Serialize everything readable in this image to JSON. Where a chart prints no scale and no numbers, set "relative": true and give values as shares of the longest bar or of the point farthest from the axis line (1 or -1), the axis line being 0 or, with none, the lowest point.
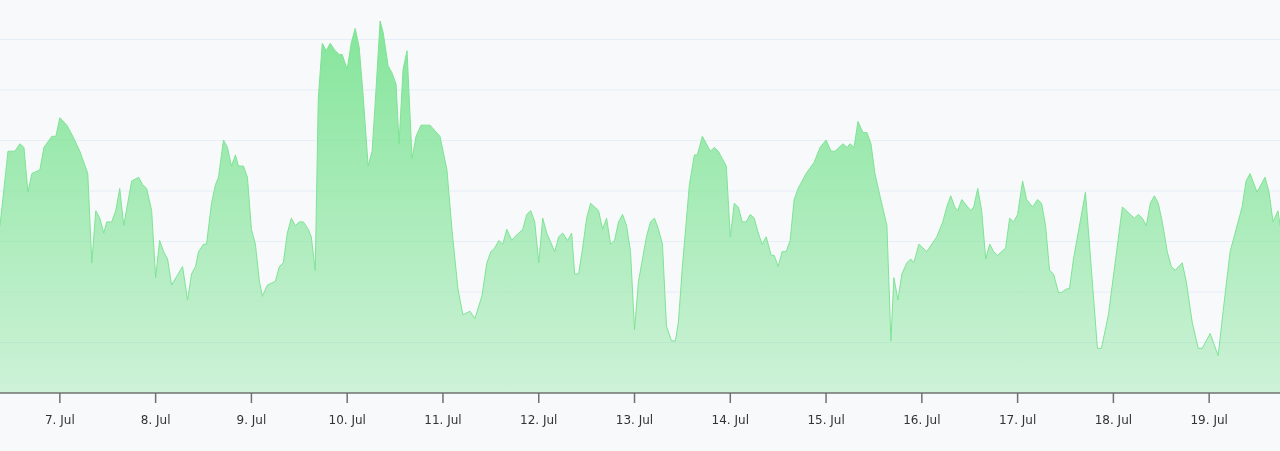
{
  "chart_data": {
    "type": "area",
    "relative": true,
    "color": "#7ee495",
    "grid": true,
    "xlim": [
      "--07-06T09:00",
      "--07-19T17:45"
    ],
    "xticks": [
      {
        "value": "--07-07",
        "label": "7. Jul"
      },
      {
        "value": "--07-08",
        "label": "8. Jul"
      },
      {
        "value": "--07-09",
        "label": "9. Jul"
      },
      {
        "value": "--07-10",
        "label": "10. Jul"
      },
      {
        "value": "--07-11",
        "label": "11. Jul"
      },
      {
        "value": "--07-12",
        "label": "12. Jul"
      },
      {
        "value": "--07-13",
        "label": "13. Jul"
      },
      {
        "value": "--07-14",
        "label": "14. Jul"
      },
      {
        "value": "--07-15",
        "label": "15. Jul"
      },
      {
        "value": "--07-16",
        "label": "16. Jul"
      },
      {
        "value": "--07-17",
        "label": "17. Jul"
      },
      {
        "value": "--07-18",
        "label": "18. Jul"
      },
      {
        "value": "--07-19",
        "label": "19. Jul"
      }
    ],
    "x": [
      "--07-06T09:00",
      "--07-06T11:00",
      "--07-06T12:45",
      "--07-06T14:00",
      "--07-06T15:00",
      "--07-06T16:00",
      "--07-06T17:00",
      "--07-06T19:00",
      "--07-06T20:00",
      "--07-06T22:00",
      "--07-06T23:00",
      "--07-07T00:00",
      "--07-07T01:45",
      "--07-07T03:15",
      "--07-07T05:00",
      "--07-07T07:00",
      "--07-07T08:00",
      "--07-07T09:00",
      "--07-07T10:00",
      "--07-07T11:00",
      "--07-07T11:45",
      "--07-07T13:00",
      "--07-07T14:00",
      "--07-07T15:00",
      "--07-07T16:00",
      "--07-07T17:00",
      "--07-07T18:00",
      "--07-07T19:45",
      "--07-07T20:45",
      "--07-07T21:45",
      "--07-07T23:00",
      "--07-08T00:00",
      "--07-08T01:00",
      "--07-08T02:00",
      "--07-08T03:00",
      "--07-08T04:00",
      "--07-08T06:45",
      "--07-08T08:00",
      "--07-08T09:00",
      "--07-08T10:00",
      "--07-08T10:45",
      "--07-08T12:00",
      "--07-08T12:45",
      "--07-08T14:00",
      "--07-08T15:00",
      "--07-08T15:45",
      "--07-08T17:00",
      "--07-08T18:00",
      "--07-08T19:00",
      "--07-08T20:00",
      "--07-08T20:45",
      "--07-08T22:00",
      "--07-08T23:00",
      "--07-09T00:00",
      "--07-09T01:00",
      "--07-09T02:00",
      "--07-09T02:45",
      "--07-09T04:00",
      "--07-09T06:00",
      "--07-09T07:00",
      "--07-09T08:00",
      "--07-09T09:00",
      "--07-09T10:00",
      "--07-09T11:00",
      "--07-09T12:00",
      "--07-09T13:00",
      "--07-09T14:15",
      "--07-09T15:00",
      "--07-09T16:00",
      "--07-09T16:45",
      "--07-09T17:45",
      "--07-09T18:45",
      "--07-09T19:45",
      "--07-09T21:00",
      "--07-09T22:00",
      "--07-09T22:45",
      "--07-10T00:00",
      "--07-10T01:00",
      "--07-10T02:00",
      "--07-10T03:00",
      "--07-10T04:00",
      "--07-10T05:15",
      "--07-10T06:15",
      "--07-10T07:15",
      "--07-10T08:15",
      "--07-10T09:00",
      "--07-10T10:15",
      "--07-10T11:15",
      "--07-10T12:15",
      "--07-10T13:00",
      "--07-10T14:00",
      "--07-10T15:00",
      "--07-10T16:15",
      "--07-10T17:15",
      "--07-10T18:30",
      "--07-10T19:30",
      "--07-10T20:45",
      "--07-10T23:15",
      "--07-11T01:00",
      "--07-11T02:15",
      "--07-11T03:45",
      "--07-11T05:00",
      "--07-11T06:45",
      "--07-11T08:00",
      "--07-11T09:45",
      "--07-11T11:00",
      "--07-11T12:00",
      "--07-11T13:00",
      "--07-11T14:00",
      "--07-11T15:00",
      "--07-11T16:00",
      "--07-11T17:15",
      "--07-11T18:00",
      "--07-11T19:00",
      "--07-11T20:00",
      "--07-11T21:00",
      "--07-11T22:00",
      "--07-11T23:00",
      "--07-12T00:00",
      "--07-12T01:00",
      "--07-12T02:00",
      "--07-12T04:00",
      "--07-12T05:00",
      "--07-12T06:00",
      "--07-12T07:15",
      "--07-12T08:15",
      "--07-12T09:00",
      "--07-12T10:00",
      "--07-12T11:00",
      "--07-12T12:00",
      "--07-12T13:00",
      "--07-12T15:00",
      "--07-12T16:00",
      "--07-12T17:00",
      "--07-12T18:00",
      "--07-12T19:00",
      "--07-12T20:00",
      "--07-12T21:00",
      "--07-12T22:00",
      "--07-12T23:00",
      "--07-13T00:00",
      "--07-13T01:00",
      "--07-13T02:00",
      "--07-13T03:00",
      "--07-13T04:00",
      "--07-13T05:00",
      "--07-13T06:00",
      "--07-13T07:00",
      "--07-13T08:00",
      "--07-13T09:15",
      "--07-13T10:15",
      "--07-13T11:00",
      "--07-13T12:00",
      "--07-13T13:45",
      "--07-13T15:00",
      "--07-13T15:45",
      "--07-13T17:00",
      "--07-13T18:00",
      "--07-13T19:00",
      "--07-13T20:00",
      "--07-13T21:00",
      "--07-13T22:00",
      "--07-13T23:00",
      "--07-14T00:00",
      "--07-14T01:00",
      "--07-14T02:00",
      "--07-14T03:00",
      "--07-14T04:00",
      "--07-14T05:00",
      "--07-14T06:00",
      "--07-14T07:00",
      "--07-14T08:00",
      "--07-14T09:00",
      "--07-14T10:15",
      "--07-14T11:00",
      "--07-14T12:00",
      "--07-14T13:00",
      "--07-14T14:00",
      "--07-14T15:00",
      "--07-14T16:00",
      "--07-14T17:00",
      "--07-14T19:00",
      "--07-14T21:00",
      "--07-14T22:30",
      "--07-15T00:00",
      "--07-15T01:15",
      "--07-15T02:15",
      "--07-15T04:15",
      "--07-15T05:15",
      "--07-15T06:00",
      "--07-15T07:00",
      "--07-15T08:00",
      "--07-15T09:15",
      "--07-15T10:15",
      "--07-15T11:15",
      "--07-15T12:15",
      "--07-15T13:30",
      "--07-15T15:15",
      "--07-15T16:15",
      "--07-15T17:00",
      "--07-15T18:00",
      "--07-15T19:00",
      "--07-15T20:15",
      "--07-15T21:15",
      "--07-15T22:00",
      "--07-15T23:15",
      "--07-16T00:15",
      "--07-16T01:15",
      "--07-16T03:45",
      "--07-16T05:15",
      "--07-16T06:15",
      "--07-16T07:15",
      "--07-16T08:15",
      "--07-16T09:00",
      "--07-16T10:00",
      "--07-16T12:15",
      "--07-16T13:00",
      "--07-16T14:00",
      "--07-16T15:00",
      "--07-16T16:00",
      "--07-16T17:00",
      "--07-16T18:00",
      "--07-16T19:00",
      "--07-16T21:00",
      "--07-16T22:00",
      "--07-16T23:00",
      "--07-17T00:00",
      "--07-17T01:15",
      "--07-17T02:15",
      "--07-17T03:45",
      "--07-17T05:00",
      "--07-17T06:00",
      "--07-17T07:00",
      "--07-17T08:00",
      "--07-17T09:00",
      "--07-17T10:15",
      "--07-17T11:00",
      "--07-17T12:15",
      "--07-17T13:00",
      "--07-17T14:00",
      "--07-17T17:00",
      "--07-17T20:00",
      "--07-17T21:00",
      "--07-17T22:45",
      "--07-18T02:15",
      "--07-18T04:15",
      "--07-18T05:15",
      "--07-18T06:15",
      "--07-18T07:15",
      "--07-18T08:15",
      "--07-18T09:15",
      "--07-18T10:15",
      "--07-18T11:15",
      "--07-18T12:15",
      "--07-18T13:30",
      "--07-18T14:30",
      "--07-18T15:30",
      "--07-18T17:15",
      "--07-18T18:15",
      "--07-18T19:45",
      "--07-18T21:15",
      "--07-18T22:15",
      "--07-19T00:15",
      "--07-19T01:15",
      "--07-19T02:15",
      "--07-19T03:30",
      "--07-19T05:15",
      "--07-19T08:15",
      "--07-19T09:15",
      "--07-19T10:15",
      "--07-19T12:00",
      "--07-19T14:00",
      "--07-19T15:00",
      "--07-19T16:00",
      "--07-19T17:15",
      "--07-19T17:45"
    ],
    "values": [
      0.45,
      0.65,
      0.65,
      0.67,
      0.66,
      0.54,
      0.59,
      0.6,
      0.66,
      0.69,
      0.69,
      0.74,
      0.72,
      0.69,
      0.65,
      0.59,
      0.35,
      0.49,
      0.47,
      0.43,
      0.46,
      0.46,
      0.49,
      0.55,
      0.45,
      0.51,
      0.57,
      0.58,
      0.56,
      0.55,
      0.49,
      0.31,
      0.41,
      0.38,
      0.36,
      0.29,
      0.34,
      0.25,
      0.32,
      0.34,
      0.38,
      0.4,
      0.4,
      0.51,
      0.56,
      0.58,
      0.68,
      0.66,
      0.61,
      0.64,
      0.61,
      0.61,
      0.58,
      0.44,
      0.4,
      0.3,
      0.26,
      0.29,
      0.3,
      0.34,
      0.35,
      0.43,
      0.47,
      0.45,
      0.46,
      0.46,
      0.44,
      0.42,
      0.33,
      0.79,
      0.94,
      0.92,
      0.94,
      0.92,
      0.91,
      0.91,
      0.87,
      0.94,
      0.98,
      0.93,
      0.8,
      0.61,
      0.65,
      0.82,
      1,
      0.97,
      0.88,
      0.86,
      0.83,
      0.67,
      0.87,
      0.92,
      0.63,
      0.69,
      0.72,
      0.72,
      0.72,
      0.69,
      0.6,
      0.44,
      0.28,
      0.21,
      0.22,
      0.2,
      0.26,
      0.35,
      0.38,
      0.39,
      0.41,
      0.4,
      0.44,
      0.41,
      0.42,
      0.43,
      0.44,
      0.48,
      0.49,
      0.46,
      0.35,
      0.47,
      0.43,
      0.38,
      0.42,
      0.43,
      0.41,
      0.43,
      0.32,
      0.32,
      0.39,
      0.47,
      0.51,
      0.49,
      0.44,
      0.47,
      0.4,
      0.41,
      0.46,
      0.48,
      0.45,
      0.38,
      0.17,
      0.3,
      0.36,
      0.42,
      0.46,
      0.47,
      0.44,
      0.4,
      0.18,
      0.14,
      0.14,
      0.19,
      0.34,
      0.56,
      0.64,
      0.64,
      0.69,
      0.67,
      0.65,
      0.66,
      0.65,
      0.63,
      0.61,
      0.42,
      0.51,
      0.5,
      0.46,
      0.46,
      0.48,
      0.47,
      0.43,
      0.4,
      0.42,
      0.37,
      0.37,
      0.34,
      0.38,
      0.38,
      0.41,
      0.52,
      0.55,
      0.59,
      0.62,
      0.66,
      0.68,
      0.65,
      0.65,
      0.67,
      0.66,
      0.67,
      0.66,
      0.73,
      0.7,
      0.7,
      0.67,
      0.59,
      0.53,
      0.45,
      0.14,
      0.31,
      0.25,
      0.32,
      0.35,
      0.36,
      0.35,
      0.4,
      0.39,
      0.38,
      0.42,
      0.46,
      0.5,
      0.53,
      0.5,
      0.49,
      0.52,
      0.49,
      0.5,
      0.55,
      0.49,
      0.36,
      0.4,
      0.38,
      0.37,
      0.39,
      0.47,
      0.46,
      0.48,
      0.57,
      0.52,
      0.5,
      0.52,
      0.51,
      0.45,
      0.33,
      0.32,
      0.27,
      0.27,
      0.28,
      0.28,
      0.36,
      0.54,
      0.12,
      0.12,
      0.21,
      0.5,
      0.48,
      0.47,
      0.48,
      0.47,
      0.45,
      0.51,
      0.53,
      0.51,
      0.46,
      0.38,
      0.34,
      0.33,
      0.35,
      0.3,
      0.19,
      0.12,
      0.12,
      0.16,
      0.13,
      0.1,
      0.22,
      0.38,
      0.5,
      0.57,
      0.59,
      0.54,
      0.58,
      0.54,
      0.46,
      0.49,
      0.45
    ]
  }
}
